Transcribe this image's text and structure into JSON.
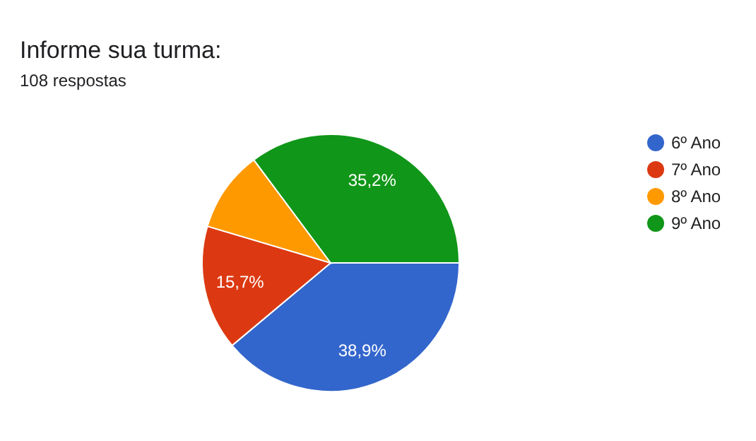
{
  "chart_data": {
    "type": "pie",
    "title": "Informe sua turma:",
    "subtitle": "108 respostas",
    "categories": [
      "6º Ano",
      "7º Ano",
      "8º Ano",
      "9º Ano"
    ],
    "values": [
      38.9,
      15.7,
      10.2,
      35.2
    ],
    "value_labels": [
      "38,9%",
      "15,7%",
      null,
      "35,2%"
    ],
    "colors": [
      "#3366cc",
      "#dc3912",
      "#ff9900",
      "#109618"
    ],
    "legend": "right"
  }
}
